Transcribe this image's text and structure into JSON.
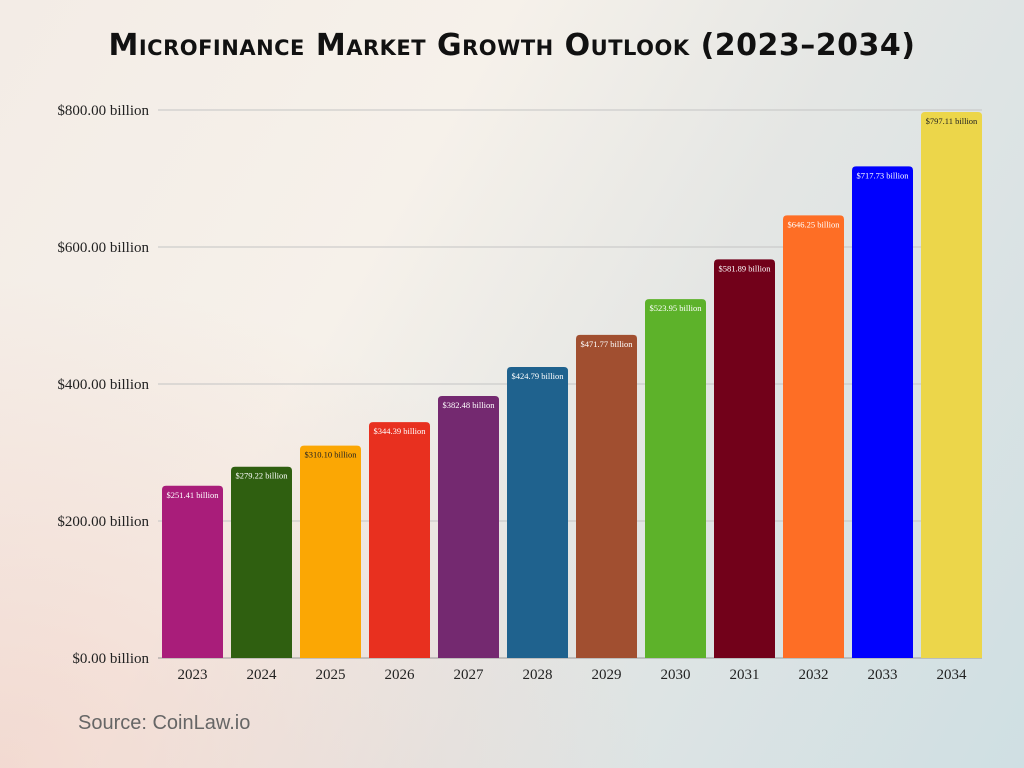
{
  "chart_data": {
    "type": "bar",
    "title": "Microfinance Market Growth Outlook (2023–2034)",
    "xlabel": "",
    "ylabel": "",
    "ylim": [
      0,
      800
    ],
    "yticks": [
      0,
      200,
      400,
      600,
      800
    ],
    "ytick_labels": [
      "$0.00 billion",
      "$200.00 billion",
      "$400.00 billion",
      "$600.00 billion",
      "$800.00 billion"
    ],
    "grid": true,
    "categories": [
      "2023",
      "2024",
      "2025",
      "2026",
      "2027",
      "2028",
      "2029",
      "2030",
      "2031",
      "2032",
      "2033",
      "2034"
    ],
    "values": [
      251.41,
      279.22,
      310.1,
      344.39,
      382.48,
      424.79,
      471.77,
      523.95,
      581.89,
      646.25,
      717.73,
      797.11
    ],
    "data_labels": [
      "$251.41 billion",
      "$279.22 billion",
      "$310.10 billion",
      "$344.39 billion",
      "$382.48 billion",
      "$424.79 billion",
      "$471.77 billion",
      "$523.95 billion",
      "$581.89 billion",
      "$646.25 billion",
      "$717.73 billion",
      "$797.11 billion"
    ],
    "colors": [
      "#a91d7a",
      "#2f5f10",
      "#fba704",
      "#e8301f",
      "#742970",
      "#1f628e",
      "#a14f30",
      "#5db22a",
      "#72011a",
      "#fe6e25",
      "#0000fe",
      "#ecd64a"
    ],
    "label_colors": [
      "#ffffff",
      "#ffffff",
      "#222222",
      "#ffffff",
      "#ffffff",
      "#ffffff",
      "#ffffff",
      "#ffffff",
      "#ffffff",
      "#ffffff",
      "#ffffff",
      "#222222"
    ]
  },
  "source": "Source: CoinLaw.io"
}
